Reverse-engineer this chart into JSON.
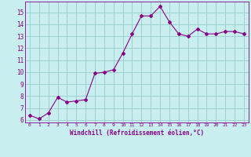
{
  "x": [
    0,
    1,
    2,
    3,
    4,
    5,
    6,
    7,
    8,
    9,
    10,
    11,
    12,
    13,
    14,
    15,
    16,
    17,
    18,
    19,
    20,
    21,
    22,
    23
  ],
  "y": [
    6.4,
    6.1,
    6.6,
    7.9,
    7.5,
    7.6,
    7.7,
    9.9,
    10.0,
    10.2,
    11.6,
    13.2,
    14.7,
    14.7,
    15.5,
    14.2,
    13.2,
    13.0,
    13.6,
    13.2,
    13.2,
    13.4,
    13.4,
    13.2
  ],
  "line_color": "#880088",
  "marker": "D",
  "marker_size": 2,
  "bg_color": "#c8eef0",
  "grid_color": "#99cccc",
  "xlabel": "Windchill (Refroidissement éolien,°C)",
  "xlim": [
    -0.5,
    23.5
  ],
  "ylim": [
    5.8,
    15.9
  ],
  "yticks": [
    6,
    7,
    8,
    9,
    10,
    11,
    12,
    13,
    14,
    15
  ],
  "xticks": [
    0,
    1,
    2,
    3,
    4,
    5,
    6,
    7,
    8,
    9,
    10,
    11,
    12,
    13,
    14,
    15,
    16,
    17,
    18,
    19,
    20,
    21,
    22,
    23
  ]
}
